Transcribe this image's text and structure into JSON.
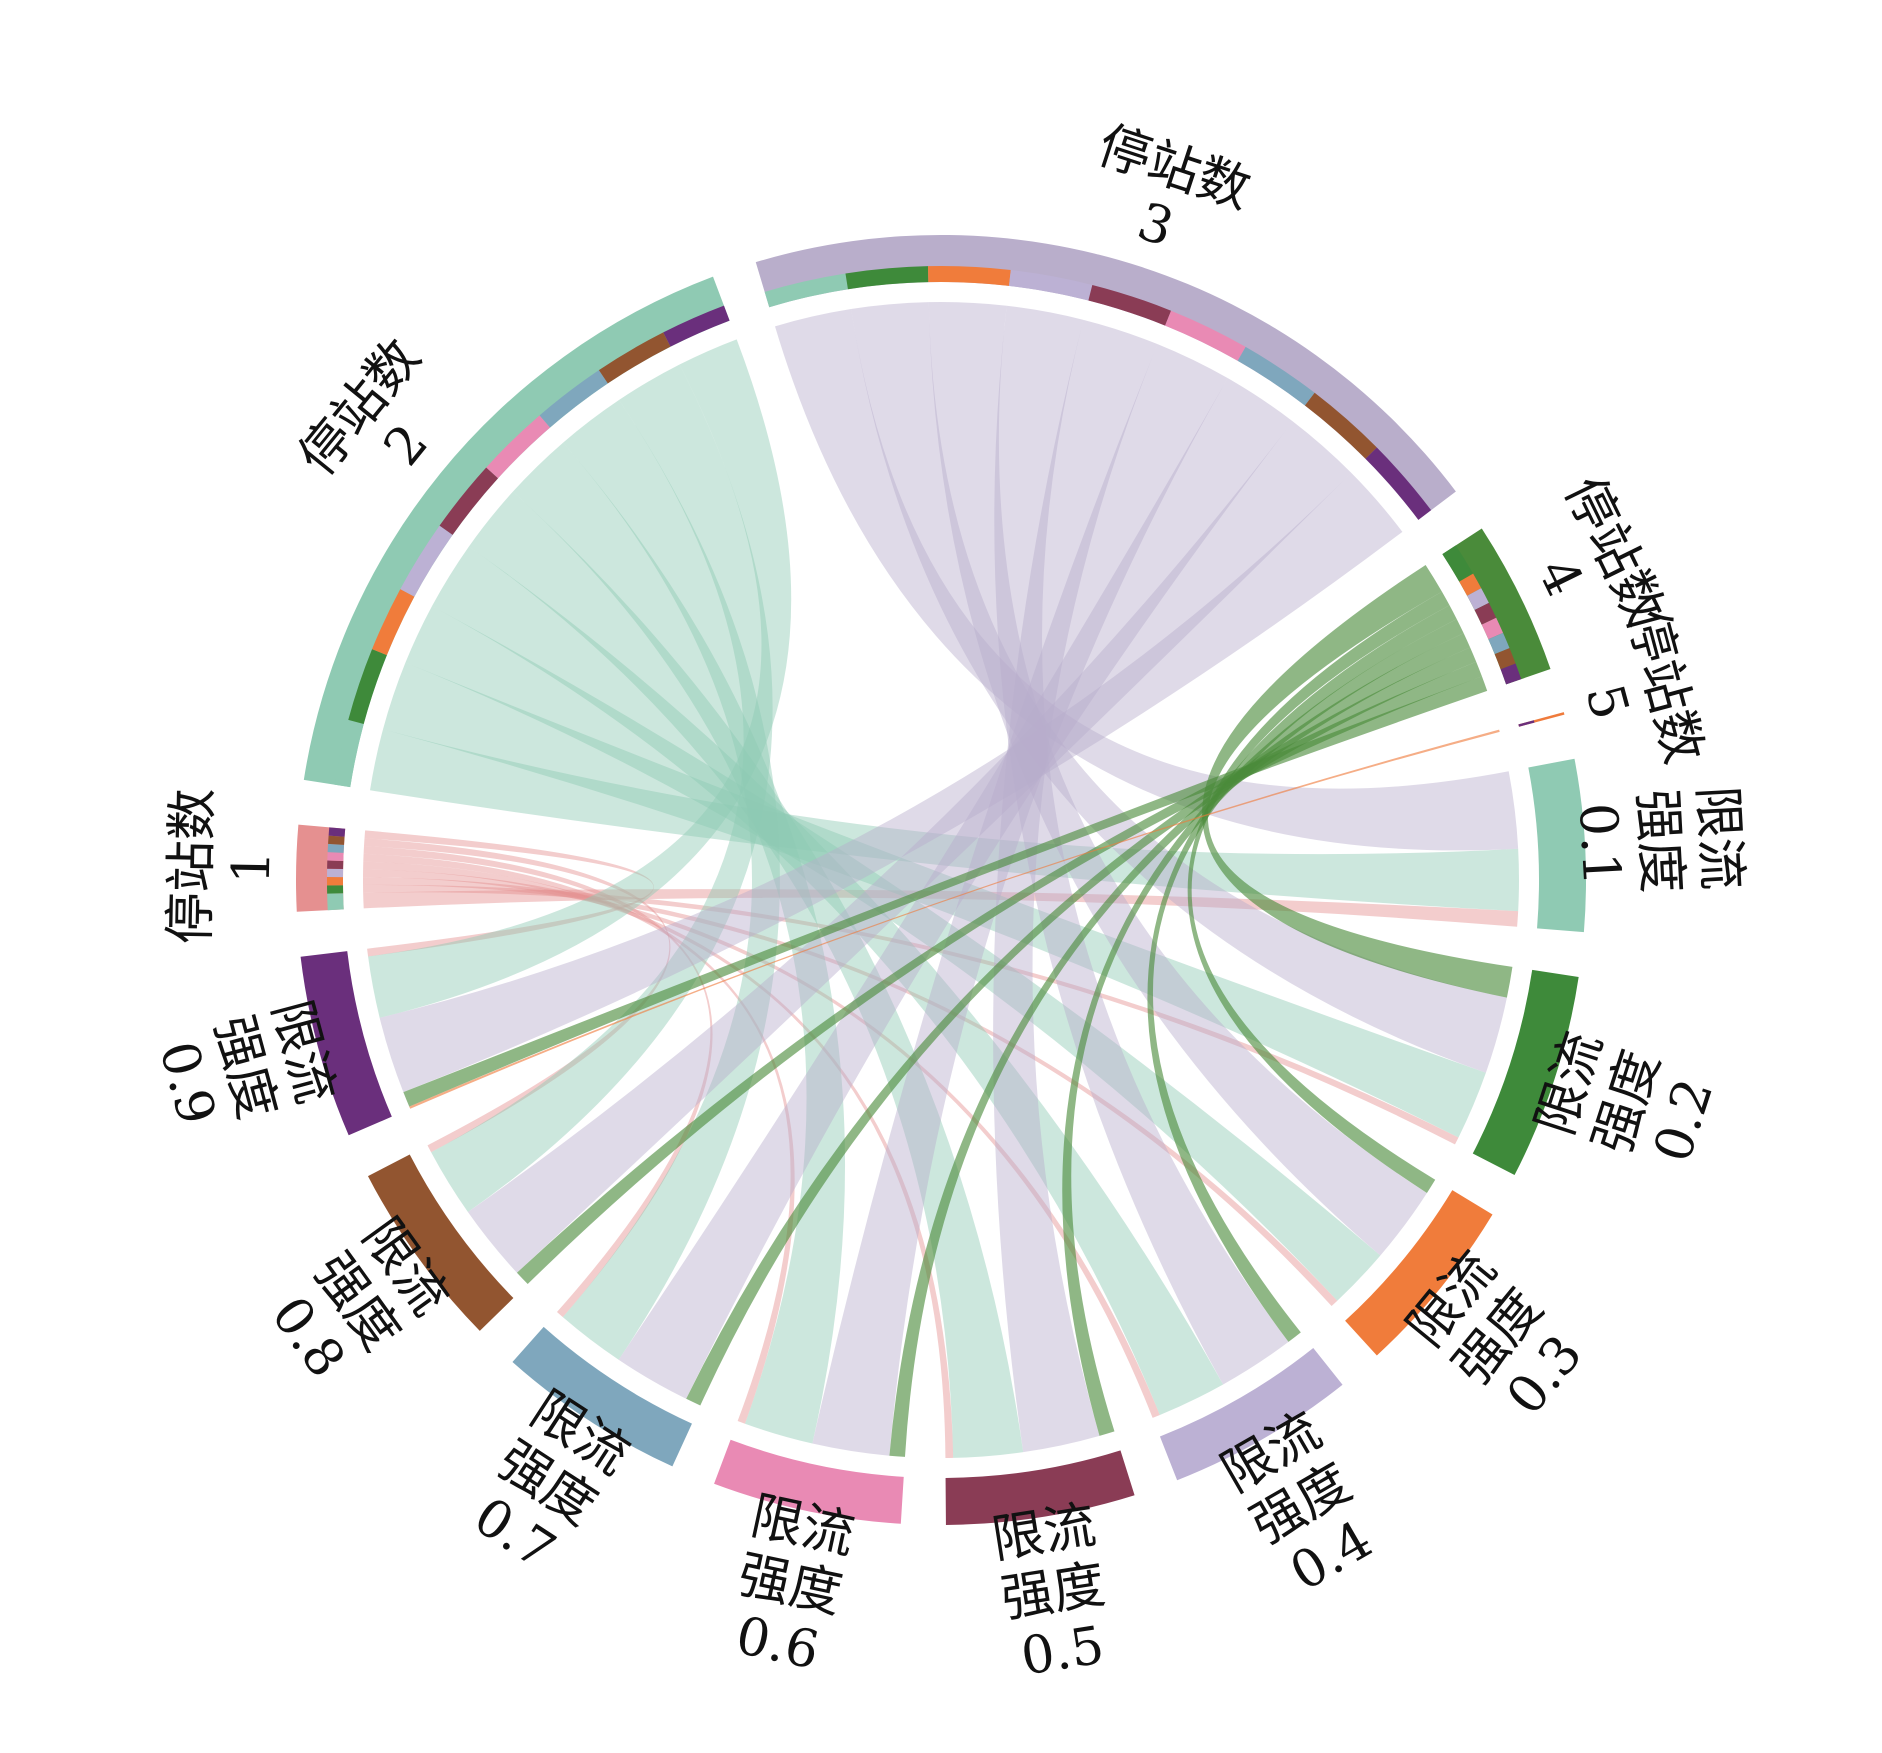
{
  "chart_data": {
    "type": "chord",
    "categories": [
      {
        "line1": "停站数",
        "line2": "1",
        "color": "#e59090"
      },
      {
        "line1": "停站数",
        "line2": "2",
        "color": "#8fcab3"
      },
      {
        "line1": "停站数",
        "line2": "3",
        "color": "#b9aecb"
      },
      {
        "line1": "停站数",
        "line2": "4",
        "color": "#4a8b3a"
      },
      {
        "line1": "停站数",
        "line2": "5",
        "color": "#ef7b3c"
      },
      {
        "line1": "限流",
        "line2": "强度",
        "line3": "0.1",
        "color": "#8fcab3"
      },
      {
        "line1": "限流",
        "line2": "强度",
        "line3": "0.2",
        "color": "#3e8a3a"
      },
      {
        "line1": "限流",
        "line2": "强度",
        "line3": "0.3",
        "color": "#f07c3b"
      },
      {
        "line1": "限流",
        "line2": "强度",
        "line3": "0.4",
        "color": "#bcb1d4"
      },
      {
        "line1": "限流",
        "line2": "强度",
        "line3": "0.5",
        "color": "#8a3c55"
      },
      {
        "line1": "限流",
        "line2": "强度",
        "line3": "0.6",
        "color": "#e98ab4"
      },
      {
        "line1": "限流",
        "line2": "强度",
        "line3": "0.7",
        "color": "#7fa7bd"
      },
      {
        "line1": "限流",
        "line2": "强度",
        "line3": "0.8",
        "color": "#925530"
      },
      {
        "line1": "限流",
        "line2": "强度",
        "line3": "0.9",
        "color": "#6a2f7c"
      }
    ],
    "matrix": [
      [
        0,
        0,
        0,
        0,
        0,
        2,
        1,
        1,
        1,
        1,
        1,
        1,
        1,
        1
      ],
      [
        0,
        0,
        0,
        0,
        0,
        8,
        9,
        8,
        9,
        9,
        9,
        9,
        9,
        8
      ],
      [
        0,
        0,
        0,
        0,
        0,
        10,
        10,
        10,
        10,
        10,
        10,
        10,
        10,
        10
      ],
      [
        0,
        0,
        0,
        0,
        0,
        0,
        4,
        2,
        2,
        2,
        2,
        2,
        2,
        2
      ],
      [
        0,
        0,
        0,
        0,
        0,
        0,
        0,
        0,
        0,
        0,
        0,
        0,
        0,
        0.3
      ],
      [
        2,
        8,
        10,
        0,
        0,
        0,
        0,
        0,
        0,
        0,
        0,
        0,
        0,
        0
      ],
      [
        1,
        9,
        10,
        4,
        0,
        0,
        0,
        0,
        0,
        0,
        0,
        0,
        0,
        0
      ],
      [
        1,
        8,
        10,
        2,
        0,
        0,
        0,
        0,
        0,
        0,
        0,
        0,
        0,
        0
      ],
      [
        1,
        9,
        10,
        2,
        0,
        0,
        0,
        0,
        0,
        0,
        0,
        0,
        0,
        0
      ],
      [
        1,
        9,
        10,
        2,
        0,
        0,
        0,
        0,
        0,
        0,
        0,
        0,
        0,
        0
      ],
      [
        1,
        9,
        10,
        2,
        0,
        0,
        0,
        0,
        0,
        0,
        0,
        0,
        0,
        0
      ],
      [
        1,
        9,
        10,
        2,
        0,
        0,
        0,
        0,
        0,
        0,
        0,
        0,
        0,
        0
      ],
      [
        1,
        9,
        10,
        2,
        0,
        0,
        0,
        0,
        0,
        0,
        0,
        0,
        0,
        0
      ],
      [
        1,
        8,
        10,
        2,
        0.3,
        0,
        0,
        0,
        0,
        0,
        0,
        0,
        0,
        0
      ]
    ],
    "source_groups": [
      0,
      1,
      2,
      3,
      4
    ]
  }
}
